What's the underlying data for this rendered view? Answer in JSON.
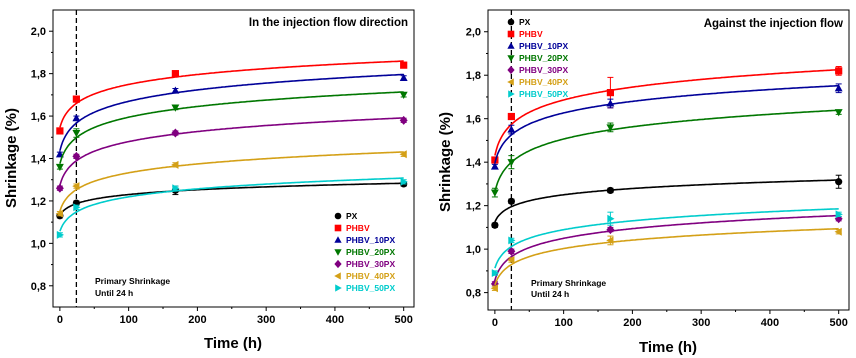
{
  "chart_data": [
    {
      "type": "scatter",
      "title": "In the injection flow direction",
      "xlabel": "Time (h)",
      "ylabel": "Shrinkage (%)",
      "xlim": [
        -10,
        515
      ],
      "ylim": [
        0.7,
        2.1
      ],
      "xticks": [
        0,
        100,
        200,
        300,
        400,
        500
      ],
      "xtick_labels": [
        "0",
        "100",
        "200",
        "300",
        "400",
        "500"
      ],
      "yticks": [
        0.8,
        1.0,
        1.2,
        1.4,
        1.6,
        1.8,
        2.0
      ],
      "ytick_labels": [
        "0,8",
        "1,0",
        "1,2",
        "1,4",
        "1,6",
        "1,8",
        "2,0"
      ],
      "annotation": {
        "line1": "Primary Shrinkage",
        "line2": "Until 24 h",
        "x": 24
      },
      "legend_position": "bottom-right",
      "series": [
        {
          "name": "PX",
          "color": "#000000",
          "marker": "circle",
          "x": [
            0,
            24,
            168,
            500
          ],
          "values": [
            1.13,
            1.19,
            1.25,
            1.28
          ],
          "err": [
            0.01,
            0.01,
            0.02,
            0.01
          ]
        },
        {
          "name": "PHBV",
          "color": "#ff0000",
          "marker": "square",
          "x": [
            0,
            24,
            168,
            500
          ],
          "values": [
            1.53,
            1.68,
            1.8,
            1.84
          ],
          "err": [
            0.01,
            0.01,
            0.01,
            0.01
          ]
        },
        {
          "name": "PHBV_10PX",
          "color": "#000099",
          "marker": "triangle-up",
          "x": [
            0,
            24,
            168,
            500
          ],
          "values": [
            1.42,
            1.59,
            1.72,
            1.78
          ],
          "err": [
            0.01,
            0.01,
            0.01,
            0.01
          ]
        },
        {
          "name": "PHBV_20PX",
          "color": "#007700",
          "marker": "triangle-down",
          "x": [
            0,
            24,
            168,
            500
          ],
          "values": [
            1.36,
            1.52,
            1.64,
            1.7
          ],
          "err": [
            0.01,
            0.02,
            0.01,
            0.01
          ]
        },
        {
          "name": "PHBV_30PX",
          "color": "#800080",
          "marker": "diamond",
          "x": [
            0,
            24,
            168,
            500
          ],
          "values": [
            1.26,
            1.41,
            1.52,
            1.58
          ],
          "err": [
            0.01,
            0.01,
            0.01,
            0.01
          ]
        },
        {
          "name": "PHBV_40PX",
          "color": "#d4a017",
          "marker": "triangle-left",
          "x": [
            0,
            24,
            168,
            500
          ],
          "values": [
            1.14,
            1.27,
            1.37,
            1.42
          ],
          "err": [
            0.01,
            0.01,
            0.01,
            0.01
          ]
        },
        {
          "name": "PHBV_50PX",
          "color": "#00cccc",
          "marker": "triangle-right",
          "x": [
            0,
            24,
            168,
            500
          ],
          "values": [
            1.04,
            1.17,
            1.26,
            1.29
          ],
          "err": [
            0.01,
            0.01,
            0.01,
            0.01
          ]
        }
      ]
    },
    {
      "type": "scatter",
      "title": "Against the injection flow",
      "xlabel": "Time (h)",
      "ylabel": "Shrinkage (%)",
      "xlim": [
        -10,
        515
      ],
      "ylim": [
        0.72,
        2.1
      ],
      "xticks": [
        0,
        100,
        200,
        300,
        400,
        500
      ],
      "xtick_labels": [
        "0",
        "100",
        "200",
        "300",
        "400",
        "500"
      ],
      "yticks": [
        0.8,
        1.0,
        1.2,
        1.4,
        1.6,
        1.8,
        2.0
      ],
      "ytick_labels": [
        "0,8",
        "1,0",
        "1,2",
        "1,4",
        "1,6",
        "1,8",
        "2,0"
      ],
      "annotation": {
        "line1": "Primary Shrinkage",
        "line2": "Until 24 h",
        "x": 24
      },
      "legend_position": "top-left",
      "series": [
        {
          "name": "PX",
          "color": "#000000",
          "marker": "circle",
          "x": [
            0,
            24,
            168,
            500
          ],
          "values": [
            1.11,
            1.22,
            1.27,
            1.31
          ],
          "err": [
            0.01,
            0.01,
            0.01,
            0.03
          ]
        },
        {
          "name": "PHBV",
          "color": "#ff0000",
          "marker": "square",
          "x": [
            0,
            24,
            168,
            500
          ],
          "values": [
            1.41,
            1.61,
            1.72,
            1.82
          ],
          "err": [
            0.01,
            0.01,
            0.07,
            0.02
          ]
        },
        {
          "name": "PHBV_10PX",
          "color": "#000099",
          "marker": "triangle-up",
          "x": [
            0,
            24,
            168,
            500
          ],
          "values": [
            1.38,
            1.55,
            1.67,
            1.74
          ],
          "err": [
            0.01,
            0.02,
            0.02,
            0.02
          ]
        },
        {
          "name": "PHBV_20PX",
          "color": "#007700",
          "marker": "triangle-down",
          "x": [
            0,
            24,
            168,
            500
          ],
          "values": [
            1.26,
            1.4,
            1.56,
            1.63
          ],
          "err": [
            0.02,
            0.03,
            0.02,
            0.01
          ]
        },
        {
          "name": "PHBV_30PX",
          "color": "#800080",
          "marker": "diamond",
          "x": [
            0,
            24,
            168,
            500
          ],
          "values": [
            0.84,
            0.99,
            1.09,
            1.14
          ],
          "err": [
            0.01,
            0.01,
            0.01,
            0.01
          ]
        },
        {
          "name": "PHBV_40PX",
          "color": "#d4a017",
          "marker": "triangle-left",
          "x": [
            0,
            24,
            168,
            500
          ],
          "values": [
            0.82,
            0.95,
            1.04,
            1.08
          ],
          "err": [
            0.01,
            0.01,
            0.02,
            0.01
          ]
        },
        {
          "name": "PHBV_50PX",
          "color": "#00cccc",
          "marker": "triangle-right",
          "x": [
            0,
            24,
            168,
            500
          ],
          "values": [
            0.89,
            1.04,
            1.14,
            1.16
          ],
          "err": [
            0.01,
            0.01,
            0.03,
            0.01
          ]
        }
      ]
    }
  ]
}
